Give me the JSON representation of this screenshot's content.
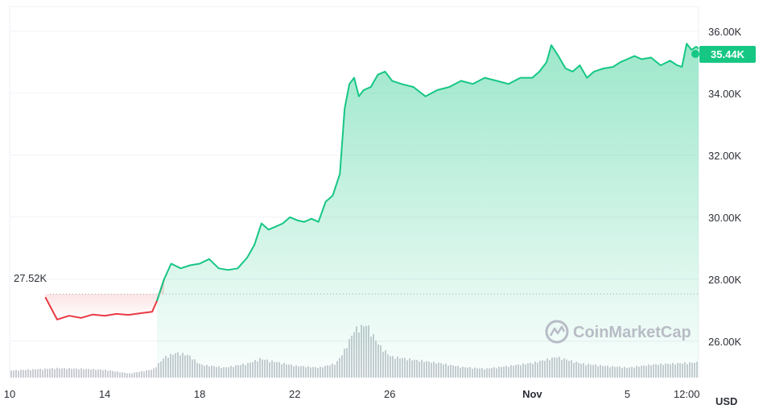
{
  "chart_data": {
    "type": "area",
    "currency_label": "USD",
    "watermark": "CoinMarketCap",
    "current_price_label": "35.44K",
    "reference_price_label": "27.52K",
    "reference_price": 27520,
    "y_ticks": [
      "36.00K",
      "34.00K",
      "32.00K",
      "30.00K",
      "28.00K",
      "26.00K"
    ],
    "y_tick_values": [
      36000,
      34000,
      32000,
      30000,
      28000,
      26000
    ],
    "ylim": [
      24800,
      36800
    ],
    "x_ticks": [
      {
        "label": "10",
        "day": 10,
        "bold": false
      },
      {
        "label": "14",
        "day": 14,
        "bold": false
      },
      {
        "label": "18",
        "day": 18,
        "bold": false
      },
      {
        "label": "22",
        "day": 22,
        "bold": false
      },
      {
        "label": "26",
        "day": 26,
        "bold": false
      },
      {
        "label": "Nov",
        "day": 32,
        "bold": true
      },
      {
        "label": "5",
        "day": 36,
        "bold": false
      },
      {
        "label": "12:00",
        "day": 38.5,
        "bold": false
      }
    ],
    "xlim": [
      10,
      39
    ],
    "colors": {
      "up": "#16c784",
      "down": "#ea3943",
      "volume": "#c9ccd3",
      "grid": "#eff2f5",
      "reference_line": "#a3a7af"
    },
    "price_series": {
      "name": "Price",
      "points": [
        [
          11.5,
          27420
        ],
        [
          12.0,
          26700
        ],
        [
          12.5,
          26820
        ],
        [
          13.0,
          26750
        ],
        [
          13.5,
          26860
        ],
        [
          14.0,
          26820
        ],
        [
          14.5,
          26880
        ],
        [
          15.0,
          26850
        ],
        [
          15.5,
          26900
        ],
        [
          16.0,
          26950
        ],
        [
          16.2,
          27300
        ],
        [
          16.5,
          28000
        ],
        [
          16.8,
          28500
        ],
        [
          17.2,
          28350
        ],
        [
          17.6,
          28450
        ],
        [
          18.0,
          28500
        ],
        [
          18.4,
          28650
        ],
        [
          18.8,
          28350
        ],
        [
          19.2,
          28300
        ],
        [
          19.6,
          28350
        ],
        [
          20.0,
          28700
        ],
        [
          20.3,
          29100
        ],
        [
          20.6,
          29800
        ],
        [
          20.9,
          29600
        ],
        [
          21.2,
          29700
        ],
        [
          21.5,
          29800
        ],
        [
          21.8,
          30000
        ],
        [
          22.1,
          29900
        ],
        [
          22.4,
          29850
        ],
        [
          22.7,
          29950
        ],
        [
          23.0,
          29850
        ],
        [
          23.3,
          30500
        ],
        [
          23.6,
          30700
        ],
        [
          23.9,
          31400
        ],
        [
          24.1,
          33500
        ],
        [
          24.3,
          34300
        ],
        [
          24.5,
          34500
        ],
        [
          24.7,
          33900
        ],
        [
          24.9,
          34100
        ],
        [
          25.2,
          34200
        ],
        [
          25.5,
          34600
        ],
        [
          25.8,
          34700
        ],
        [
          26.1,
          34400
        ],
        [
          26.5,
          34300
        ],
        [
          27.0,
          34200
        ],
        [
          27.5,
          33900
        ],
        [
          28.0,
          34100
        ],
        [
          28.5,
          34200
        ],
        [
          29.0,
          34400
        ],
        [
          29.5,
          34300
        ],
        [
          30.0,
          34500
        ],
        [
          30.5,
          34400
        ],
        [
          31.0,
          34300
        ],
        [
          31.5,
          34500
        ],
        [
          32.0,
          34500
        ],
        [
          32.3,
          34700
        ],
        [
          32.6,
          35000
        ],
        [
          32.8,
          35550
        ],
        [
          33.1,
          35200
        ],
        [
          33.4,
          34800
        ],
        [
          33.7,
          34700
        ],
        [
          34.0,
          34900
        ],
        [
          34.3,
          34500
        ],
        [
          34.6,
          34700
        ],
        [
          35.0,
          34800
        ],
        [
          35.4,
          34850
        ],
        [
          35.7,
          35000
        ],
        [
          36.0,
          35100
        ],
        [
          36.3,
          35200
        ],
        [
          36.6,
          35100
        ],
        [
          37.0,
          35150
        ],
        [
          37.4,
          34900
        ],
        [
          37.8,
          35050
        ],
        [
          38.1,
          34900
        ],
        [
          38.3,
          34850
        ],
        [
          38.5,
          35600
        ],
        [
          38.7,
          35400
        ],
        [
          38.9,
          35500
        ],
        [
          39.0,
          35440
        ]
      ]
    },
    "volume_series": {
      "name": "Volume",
      "points": [
        [
          10.0,
          0.12
        ],
        [
          11.0,
          0.14
        ],
        [
          12.0,
          0.16
        ],
        [
          13.0,
          0.15
        ],
        [
          14.0,
          0.13
        ],
        [
          15.0,
          0.07
        ],
        [
          16.0,
          0.14
        ],
        [
          16.5,
          0.35
        ],
        [
          17.0,
          0.42
        ],
        [
          17.5,
          0.38
        ],
        [
          18.0,
          0.22
        ],
        [
          19.0,
          0.17
        ],
        [
          20.0,
          0.24
        ],
        [
          20.5,
          0.32
        ],
        [
          21.0,
          0.28
        ],
        [
          22.0,
          0.2
        ],
        [
          23.0,
          0.17
        ],
        [
          23.7,
          0.24
        ],
        [
          24.0,
          0.42
        ],
        [
          24.5,
          0.82
        ],
        [
          25.0,
          0.9
        ],
        [
          25.5,
          0.56
        ],
        [
          26.0,
          0.36
        ],
        [
          27.0,
          0.3
        ],
        [
          28.0,
          0.25
        ],
        [
          29.0,
          0.18
        ],
        [
          30.0,
          0.15
        ],
        [
          31.0,
          0.2
        ],
        [
          32.0,
          0.25
        ],
        [
          33.0,
          0.35
        ],
        [
          34.0,
          0.24
        ],
        [
          35.0,
          0.2
        ],
        [
          36.0,
          0.17
        ],
        [
          37.0,
          0.22
        ],
        [
          38.0,
          0.24
        ],
        [
          39.0,
          0.26
        ]
      ]
    }
  }
}
